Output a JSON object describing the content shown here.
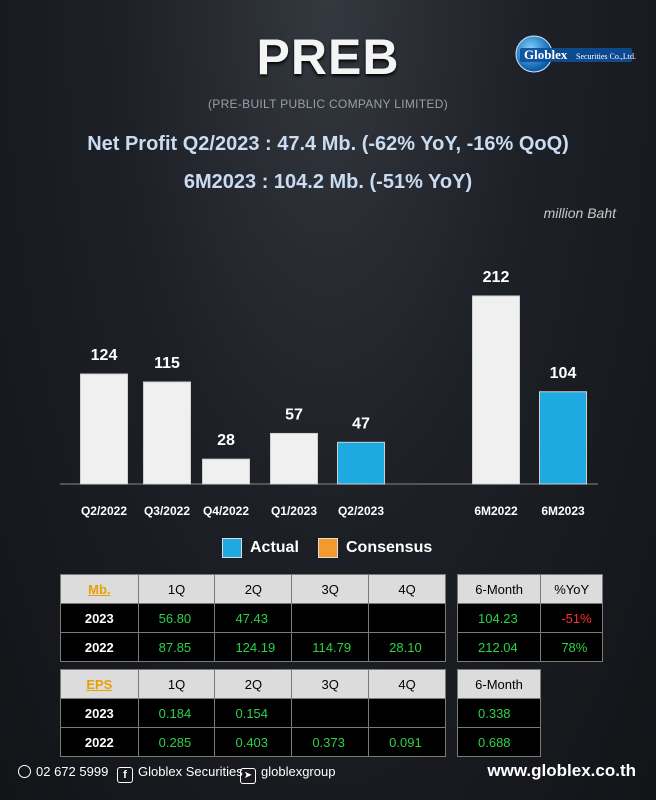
{
  "header": {
    "title": "PREB",
    "subtitle": "(PRE-BUILT PUBLIC COMPANY LIMITED)",
    "line1": "Net Profit  Q2/2023 : 47.4 Mb. (-62% YoY, -16% QoQ)",
    "line2": "6M2023 : 104.2 Mb. (-51% YoY)",
    "unit": "million Baht"
  },
  "logo": {
    "text": "Globlex",
    "sub": "Securities Co.,Ltd."
  },
  "colors": {
    "actual": "#1fa9e1",
    "consensus": "#f39a2e",
    "prior": "#f0f0f0"
  },
  "chart_data": {
    "type": "bar",
    "categories": [
      "Q2/2022",
      "Q3/2022",
      "Q4/2022",
      "Q1/2023",
      "Q2/2023",
      "6M2022",
      "6M2023"
    ],
    "values": [
      124,
      115,
      28,
      57,
      47,
      212,
      104
    ],
    "highlight": [
      false,
      false,
      false,
      false,
      true,
      false,
      true
    ],
    "ylim": [
      0,
      230
    ],
    "grid": false,
    "legend": {
      "placement": "bottom-center",
      "items": [
        "Actual",
        "Consensus"
      ]
    }
  },
  "tables": {
    "profit": {
      "key": "Mb.",
      "quarters": [
        "1Q",
        "2Q",
        "3Q",
        "4Q"
      ],
      "rows": [
        {
          "year": "2023",
          "q": [
            "56.80",
            "47.43",
            "",
            ""
          ],
          "sixm": "104.23",
          "yoy": "-51%"
        },
        {
          "year": "2022",
          "q": [
            "87.85",
            "124.19",
            "114.79",
            "28.10"
          ],
          "sixm": "212.04",
          "yoy": "78%"
        }
      ],
      "sixm_label": "6-Month",
      "yoy_label": "%YoY"
    },
    "eps": {
      "key": "EPS",
      "quarters": [
        "1Q",
        "2Q",
        "3Q",
        "4Q"
      ],
      "rows": [
        {
          "year": "2023",
          "q": [
            "0.184",
            "0.154",
            "",
            ""
          ],
          "sixm": "0.338"
        },
        {
          "year": "2022",
          "q": [
            "0.285",
            "0.403",
            "0.373",
            "0.091"
          ],
          "sixm": "0.688"
        }
      ],
      "sixm_label": "6-Month"
    }
  },
  "footer": {
    "phone": "02 672 5999",
    "facebook": "Globlex Securities",
    "telegram": "globlexgroup",
    "website": "www.globlex.co.th"
  }
}
